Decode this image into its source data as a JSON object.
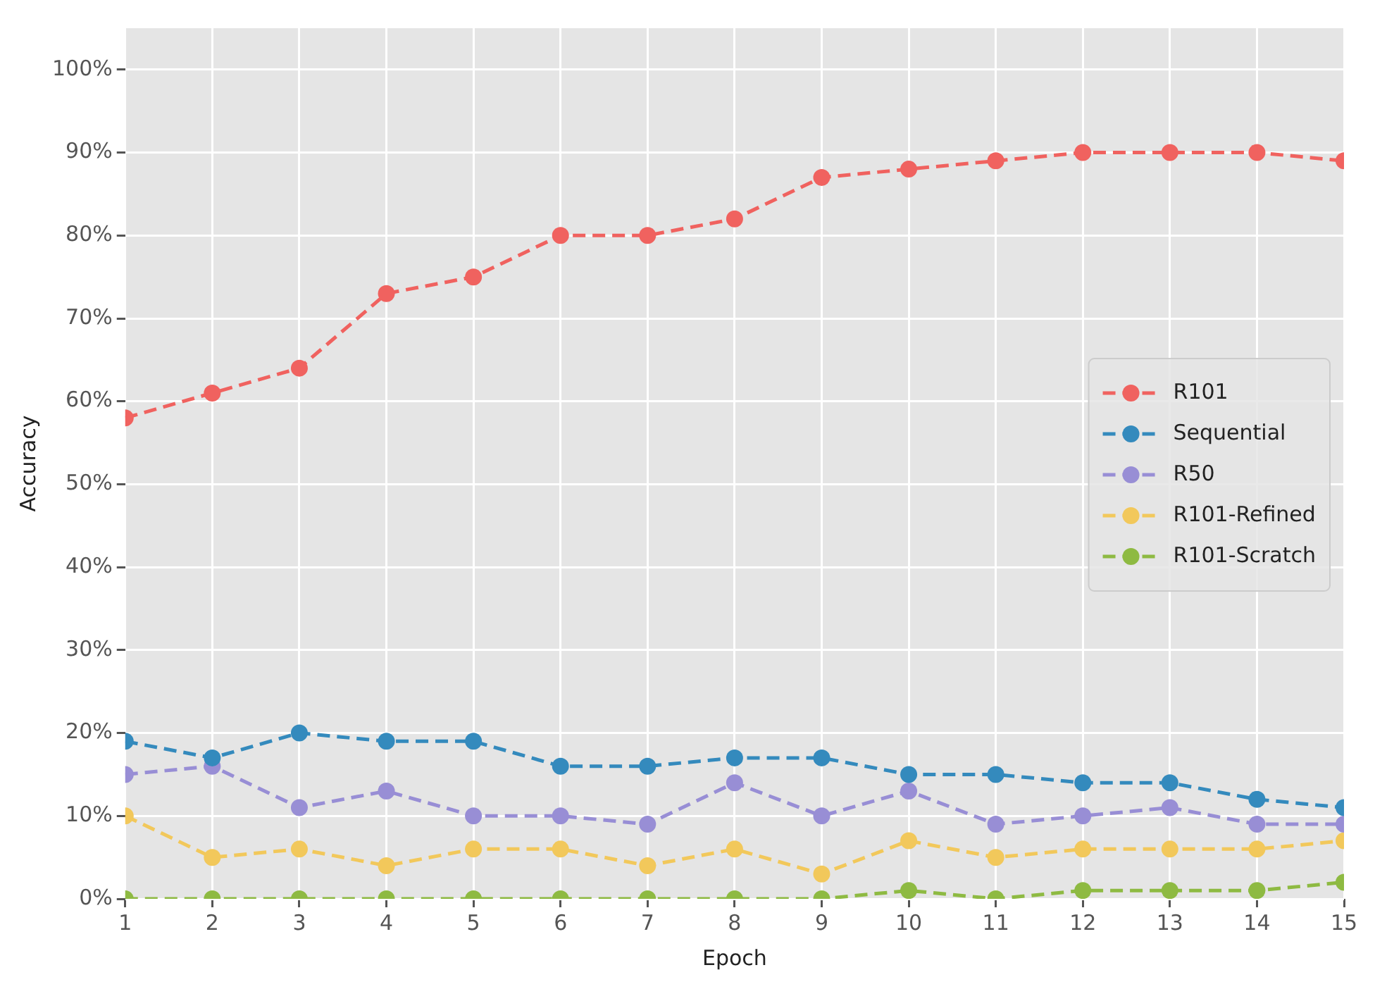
{
  "chart_data": {
    "type": "line",
    "xlabel": "Epoch",
    "ylabel": "Accuracy",
    "x": [
      1,
      2,
      3,
      4,
      5,
      6,
      7,
      8,
      9,
      10,
      11,
      12,
      13,
      14,
      15
    ],
    "series": [
      {
        "name": "R101",
        "color": "#f0625f",
        "values": [
          58,
          61,
          64,
          73,
          75,
          80,
          80,
          82,
          87,
          88,
          89,
          90,
          90,
          90,
          89
        ]
      },
      {
        "name": "Sequential",
        "color": "#348abd",
        "values": [
          19,
          17,
          20,
          19,
          19,
          16,
          16,
          17,
          17,
          15,
          15,
          14,
          14,
          12,
          11
        ]
      },
      {
        "name": "R50",
        "color": "#988ed5",
        "values": [
          15,
          16,
          11,
          13,
          10,
          10,
          9,
          14,
          10,
          13,
          9,
          10,
          11,
          9,
          9
        ]
      },
      {
        "name": "R101-Refined",
        "color": "#f2c85b",
        "values": [
          10,
          5,
          6,
          4,
          6,
          6,
          4,
          6,
          3,
          7,
          5,
          6,
          6,
          6,
          7
        ]
      },
      {
        "name": "R101-Scratch",
        "color": "#8eba42",
        "values": [
          0,
          0,
          0,
          0,
          0,
          0,
          0,
          0,
          0,
          1,
          0,
          1,
          1,
          1,
          2
        ]
      }
    ],
    "xlim": [
      1,
      15
    ],
    "xticks": [
      1,
      2,
      3,
      4,
      5,
      6,
      7,
      8,
      9,
      10,
      11,
      12,
      13,
      14,
      15
    ],
    "ylim": [
      0,
      105
    ],
    "yticks": [
      {
        "value": 0,
        "label": "0%"
      },
      {
        "value": 10,
        "label": "10%"
      },
      {
        "value": 20,
        "label": "20%"
      },
      {
        "value": 30,
        "label": "30%"
      },
      {
        "value": 40,
        "label": "40%"
      },
      {
        "value": 50,
        "label": "50%"
      },
      {
        "value": 60,
        "label": "60%"
      },
      {
        "value": 70,
        "label": "70%"
      },
      {
        "value": 80,
        "label": "80%"
      },
      {
        "value": 90,
        "label": "90%"
      },
      {
        "value": 100,
        "label": "100%"
      }
    ],
    "grid": true,
    "legend": "right",
    "marker": "circle",
    "line_style": "dashed"
  }
}
